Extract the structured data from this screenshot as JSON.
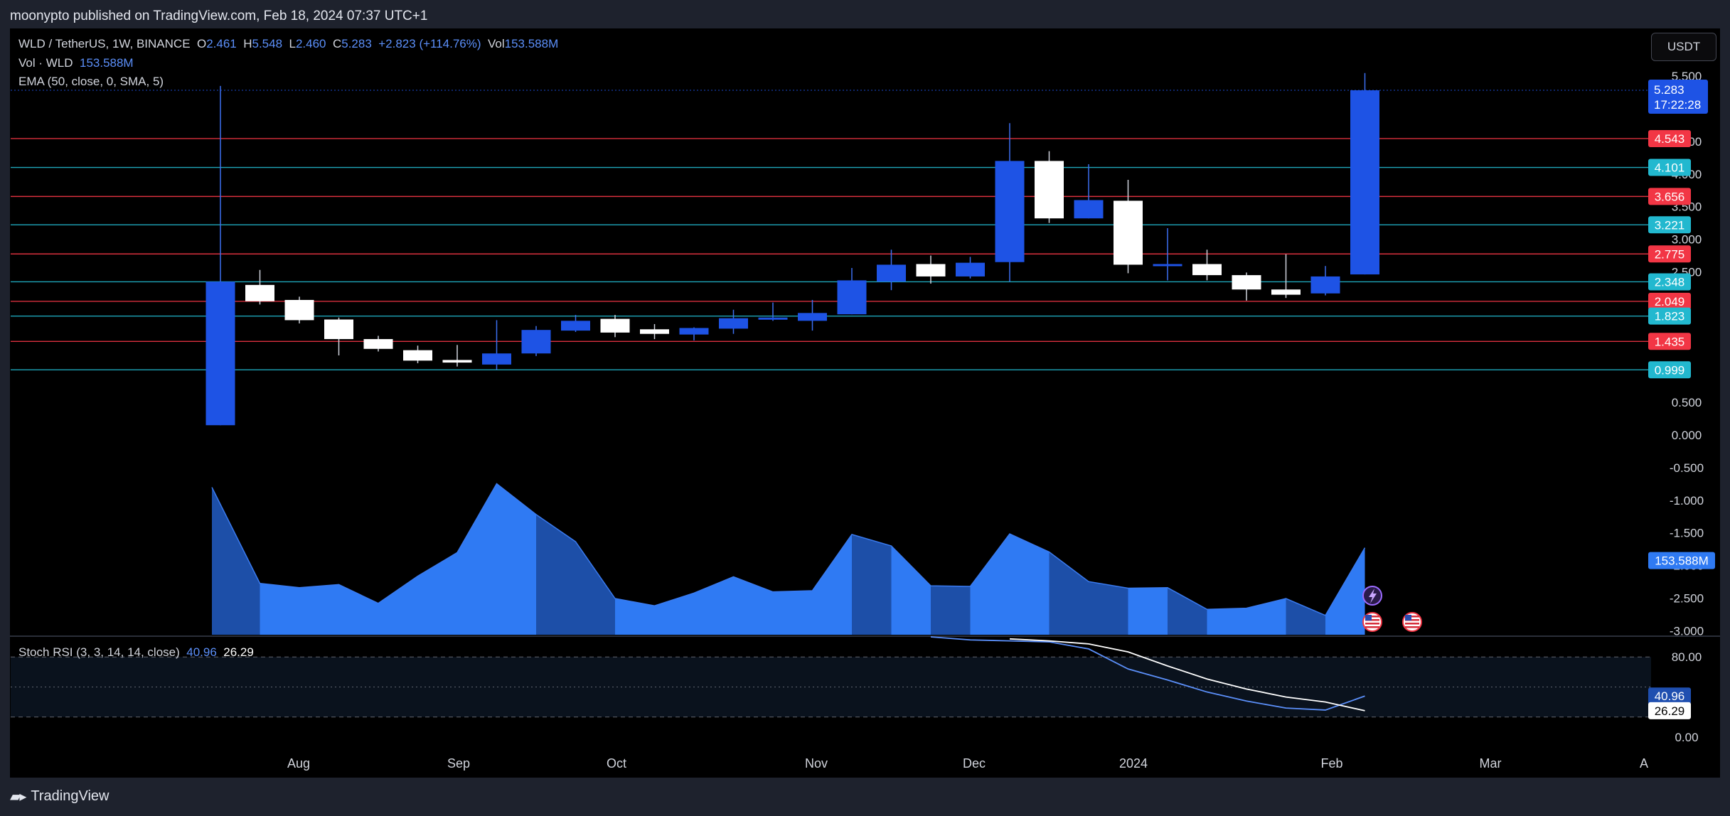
{
  "header": {
    "published": "moonypto published on TradingView.com, Feb 18, 2024 07:37 UTC+1"
  },
  "footer": {
    "brand": "TradingView"
  },
  "legend": {
    "symbol": "WLD / TetherUS, 1W, BINANCE",
    "o_label": "O",
    "o_value": "2.461",
    "h_label": "H",
    "h_value": "5.548",
    "l_label": "L",
    "l_value": "2.460",
    "c_label": "C",
    "c_value": "5.283",
    "change": "+2.823 (+114.76%)",
    "vol_label": "Vol",
    "vol_value": "153.588M",
    "vol_study": "Vol · WLD",
    "vol_study_value": "153.588M",
    "ema_study": "EMA (50, close, 0, SMA, 5)",
    "stoch_study": "Stoch RSI (3, 3, 14, 14, close)",
    "stoch_k": "40.96",
    "stoch_d": "26.29"
  },
  "currency_button": "USDT",
  "colors": {
    "bull": "#1e53e5",
    "bear": "#ffffff",
    "red_level": "#f23645",
    "cyan_level": "#22b8cf",
    "vol_light": "#2f7af3",
    "vol_dark": "#1d4fa8",
    "stoch_k": "#5b8ff9",
    "stoch_d": "#ffffff"
  },
  "chart_data": {
    "type": "candlestick",
    "symbol": "WLD / TetherUS",
    "timeframe": "1W",
    "price_ticks": [
      "5.500",
      "5.000",
      "4.500",
      "4.000",
      "3.500",
      "3.000",
      "2.500",
      "0.500",
      "0.000",
      "-0.500",
      "-1.000",
      "-1.500",
      "-2.000",
      "-2.500",
      "-3.000"
    ],
    "price_range": [
      -3.05,
      5.75
    ],
    "time_labels": [
      "Aug",
      "Sep",
      "Oct",
      "Nov",
      "Dec",
      "2024",
      "Feb",
      "Mar",
      "A"
    ],
    "candles": [
      {
        "o": 0.15,
        "h": 5.35,
        "l": 0.15,
        "c": 2.35
      },
      {
        "o": 2.3,
        "h": 2.53,
        "l": 2.0,
        "c": 2.05
      },
      {
        "o": 2.07,
        "h": 2.12,
        "l": 1.71,
        "c": 1.76
      },
      {
        "o": 1.77,
        "h": 1.8,
        "l": 1.22,
        "c": 1.47
      },
      {
        "o": 1.47,
        "h": 1.52,
        "l": 1.28,
        "c": 1.32
      },
      {
        "o": 1.3,
        "h": 1.37,
        "l": 1.1,
        "c": 1.14
      },
      {
        "o": 1.15,
        "h": 1.38,
        "l": 1.05,
        "c": 1.11
      },
      {
        "o": 1.08,
        "h": 1.76,
        "l": 1.0,
        "c": 1.25
      },
      {
        "o": 1.25,
        "h": 1.67,
        "l": 1.21,
        "c": 1.61
      },
      {
        "o": 1.6,
        "h": 1.84,
        "l": 1.58,
        "c": 1.75
      },
      {
        "o": 1.78,
        "h": 1.84,
        "l": 1.5,
        "c": 1.57
      },
      {
        "o": 1.62,
        "h": 1.7,
        "l": 1.47,
        "c": 1.55
      },
      {
        "o": 1.54,
        "h": 1.65,
        "l": 1.45,
        "c": 1.64
      },
      {
        "o": 1.63,
        "h": 1.92,
        "l": 1.55,
        "c": 1.79
      },
      {
        "o": 1.78,
        "h": 2.03,
        "l": 1.75,
        "c": 1.8
      },
      {
        "o": 1.75,
        "h": 2.07,
        "l": 1.6,
        "c": 1.87
      },
      {
        "o": 1.85,
        "h": 2.56,
        "l": 1.85,
        "c": 2.37
      },
      {
        "o": 2.35,
        "h": 2.84,
        "l": 2.22,
        "c": 2.61
      },
      {
        "o": 2.62,
        "h": 2.75,
        "l": 2.32,
        "c": 2.43
      },
      {
        "o": 2.43,
        "h": 2.73,
        "l": 2.4,
        "c": 2.64
      },
      {
        "o": 2.65,
        "h": 4.78,
        "l": 2.35,
        "c": 4.2
      },
      {
        "o": 4.2,
        "h": 4.35,
        "l": 3.25,
        "c": 3.32
      },
      {
        "o": 3.32,
        "h": 4.15,
        "l": 3.32,
        "c": 3.6
      },
      {
        "o": 3.59,
        "h": 3.91,
        "l": 2.48,
        "c": 2.61
      },
      {
        "o": 2.6,
        "h": 3.17,
        "l": 2.37,
        "c": 2.62
      },
      {
        "o": 2.62,
        "h": 2.84,
        "l": 2.37,
        "c": 2.45
      },
      {
        "o": 2.45,
        "h": 2.49,
        "l": 2.06,
        "c": 2.23
      },
      {
        "o": 2.23,
        "h": 2.77,
        "l": 2.1,
        "c": 2.15
      },
      {
        "o": 2.17,
        "h": 2.59,
        "l": 2.14,
        "c": 2.43
      },
      {
        "o": 2.461,
        "h": 5.548,
        "l": 2.46,
        "c": 5.283
      }
    ],
    "horizontal_levels": [
      {
        "value": 4.543,
        "label": "4.543",
        "color": "red"
      },
      {
        "value": 4.101,
        "label": "4.101",
        "color": "cyan"
      },
      {
        "value": 3.656,
        "label": "3.656",
        "color": "red"
      },
      {
        "value": 3.221,
        "label": "3.221",
        "color": "cyan"
      },
      {
        "value": 2.775,
        "label": "2.775",
        "color": "red"
      },
      {
        "value": 2.348,
        "label": "2.348",
        "color": "cyan"
      },
      {
        "value": 2.049,
        "label": "2.049",
        "color": "red"
      },
      {
        "value": 1.823,
        "label": "1.823",
        "color": "cyan"
      },
      {
        "value": 1.435,
        "label": "1.435",
        "color": "red"
      },
      {
        "value": 0.999,
        "label": "0.999",
        "color": "cyan"
      }
    ],
    "last_price": {
      "value": 5.283,
      "label": "5.283",
      "countdown": "17:22:28"
    },
    "volume": {
      "last_label": "153.588M",
      "values": [
        24.4,
        8.5,
        7.8,
        8.3,
        5.2,
        9.7,
        13.6,
        25.0,
        19.9,
        15.4,
        6.0,
        4.8,
        6.9,
        9.6,
        7.1,
        7.3,
        16.6,
        14.7,
        8.1,
        8.0,
        16.7,
        13.7,
        8.8,
        7.7,
        7.8,
        4.2,
        4.4,
        6.0,
        3.2,
        14.4
      ]
    },
    "stoch_rsi": {
      "ticks": [
        "80.00",
        "0.00"
      ],
      "levels": [
        80,
        50,
        20
      ],
      "k": {
        "name": "K",
        "value_label": "40.96",
        "values": [
          null,
          null,
          null,
          null,
          null,
          null,
          null,
          null,
          null,
          null,
          null,
          null,
          null,
          null,
          null,
          null,
          null,
          null,
          100,
          97,
          96,
          95,
          88,
          68,
          57,
          45,
          36,
          29,
          27,
          40.96
        ]
      },
      "d": {
        "name": "D",
        "value_label": "26.29",
        "values": [
          null,
          null,
          null,
          null,
          null,
          null,
          null,
          null,
          null,
          null,
          null,
          null,
          null,
          null,
          null,
          null,
          null,
          null,
          null,
          null,
          98,
          96,
          93,
          85,
          71,
          58,
          48,
          40,
          35,
          26.29
        ]
      }
    }
  }
}
